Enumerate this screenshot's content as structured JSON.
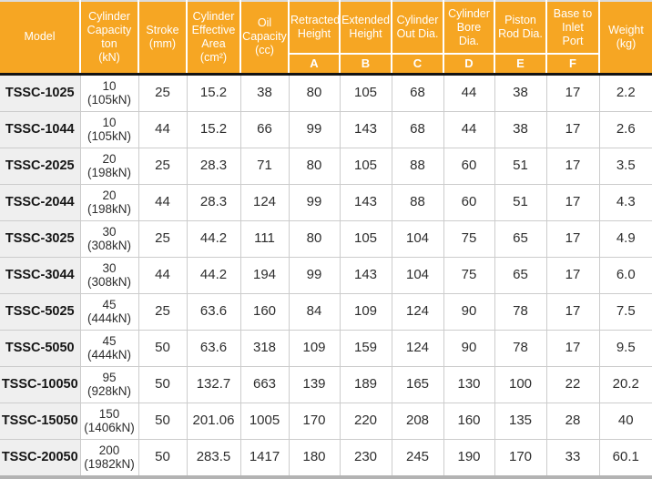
{
  "colors": {
    "header_bg": "#F6A623",
    "header_text": "#FFFFFF",
    "model_col_bg": "#EFEFEF",
    "grid_line": "#CCCCCC",
    "header_bottom_divider": "#141414",
    "table_bottom_border": "#B3B3B3"
  },
  "chart_data": {
    "type": "table",
    "header": {
      "model": "Model",
      "capacity": "Cylinder\nCapacity\nton\n(kN)",
      "stroke": "Stroke\n(mm)",
      "effective_area": "Cylinder\nEffective\nArea\n(cm²)",
      "oil_capacity": "Oil\nCapacity\n(cc)",
      "retracted_height": "Retracted\nHeight",
      "extended_height": "Extended\nHeight",
      "cylinder_out_dia": "Cylinder\nOut Dia.",
      "cylinder_bore_dia": "Cylinder\nBore Dia.",
      "piston_rod_dia": "Piston\nRod Dia.",
      "base_to_inlet_port": "Base to\nInlet\nPort",
      "weight": "Weight\n(kg)",
      "sub_labels": [
        "A",
        "B",
        "C",
        "D",
        "E",
        "F"
      ]
    },
    "column_keys": [
      "model",
      "capacity",
      "stroke",
      "effective_area",
      "oil_capacity",
      "a",
      "b",
      "c",
      "d",
      "e",
      "f",
      "weight"
    ],
    "rows": [
      {
        "model": "TSSC-1025",
        "capacity": "10\n(105kN)",
        "stroke": "25",
        "effective_area": "15.2",
        "oil_capacity": "38",
        "a": "80",
        "b": "105",
        "c": "68",
        "d": "44",
        "e": "38",
        "f": "17",
        "weight": "2.2"
      },
      {
        "model": "TSSC-1044",
        "capacity": "10\n(105kN)",
        "stroke": "44",
        "effective_area": "15.2",
        "oil_capacity": "66",
        "a": "99",
        "b": "143",
        "c": "68",
        "d": "44",
        "e": "38",
        "f": "17",
        "weight": "2.6"
      },
      {
        "model": "TSSC-2025",
        "capacity": "20\n(198kN)",
        "stroke": "25",
        "effective_area": "28.3",
        "oil_capacity": "71",
        "a": "80",
        "b": "105",
        "c": "88",
        "d": "60",
        "e": "51",
        "f": "17",
        "weight": "3.5"
      },
      {
        "model": "TSSC-2044",
        "capacity": "20\n(198kN)",
        "stroke": "44",
        "effective_area": "28.3",
        "oil_capacity": "124",
        "a": "99",
        "b": "143",
        "c": "88",
        "d": "60",
        "e": "51",
        "f": "17",
        "weight": "4.3"
      },
      {
        "model": "TSSC-3025",
        "capacity": "30\n(308kN)",
        "stroke": "25",
        "effective_area": "44.2",
        "oil_capacity": "111",
        "a": "80",
        "b": "105",
        "c": "104",
        "d": "75",
        "e": "65",
        "f": "17",
        "weight": "4.9"
      },
      {
        "model": "TSSC-3044",
        "capacity": "30\n(308kN)",
        "stroke": "44",
        "effective_area": "44.2",
        "oil_capacity": "194",
        "a": "99",
        "b": "143",
        "c": "104",
        "d": "75",
        "e": "65",
        "f": "17",
        "weight": "6.0"
      },
      {
        "model": "TSSC-5025",
        "capacity": "45\n(444kN)",
        "stroke": "25",
        "effective_area": "63.6",
        "oil_capacity": "160",
        "a": "84",
        "b": "109",
        "c": "124",
        "d": "90",
        "e": "78",
        "f": "17",
        "weight": "7.5"
      },
      {
        "model": "TSSC-5050",
        "capacity": "45\n(444kN)",
        "stroke": "50",
        "effective_area": "63.6",
        "oil_capacity": "318",
        "a": "109",
        "b": "159",
        "c": "124",
        "d": "90",
        "e": "78",
        "f": "17",
        "weight": "9.5"
      },
      {
        "model": "TSSC-10050",
        "capacity": "95\n(928kN)",
        "stroke": "50",
        "effective_area": "132.7",
        "oil_capacity": "663",
        "a": "139",
        "b": "189",
        "c": "165",
        "d": "130",
        "e": "100",
        "f": "22",
        "weight": "20.2"
      },
      {
        "model": "TSSC-15050",
        "capacity": "150\n(1406kN)",
        "stroke": "50",
        "effective_area": "201.06",
        "oil_capacity": "1005",
        "a": "170",
        "b": "220",
        "c": "208",
        "d": "160",
        "e": "135",
        "f": "28",
        "weight": "40"
      },
      {
        "model": "TSSC-20050",
        "capacity": "200\n(1982kN)",
        "stroke": "50",
        "effective_area": "283.5",
        "oil_capacity": "1417",
        "a": "180",
        "b": "230",
        "c": "245",
        "d": "190",
        "e": "170",
        "f": "33",
        "weight": "60.1"
      }
    ]
  }
}
